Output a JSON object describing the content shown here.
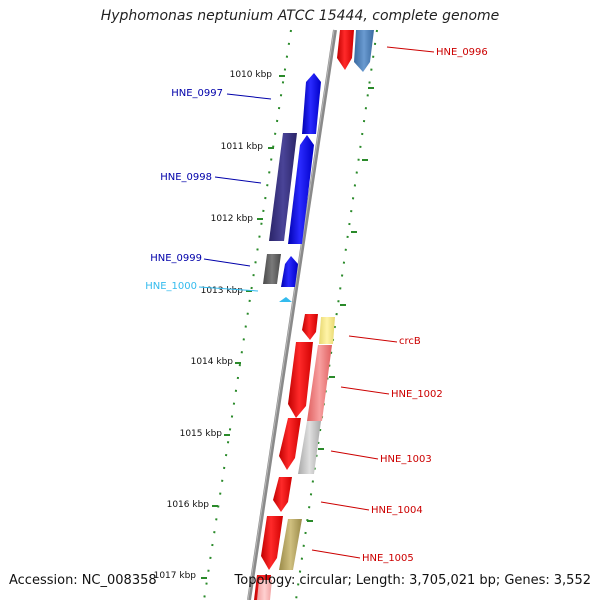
{
  "title": "Hyphomonas neptunium ATCC 15444, complete genome",
  "footer": {
    "accession_label": "Accession:",
    "accession": "NC_008358",
    "topology_label": "Topology:",
    "topology": "circular;",
    "length_label": "Length:",
    "length": "3,705,021 bp;",
    "genes_label": "Genes:",
    "genes": "3,552"
  },
  "scale_ticks": [
    {
      "label": "1010 kbp"
    },
    {
      "label": "1011 kbp"
    },
    {
      "label": "1012 kbp"
    },
    {
      "label": "1013 kbp"
    },
    {
      "label": "1014 kbp"
    },
    {
      "label": "1015 kbp"
    },
    {
      "label": "1016 kbp"
    },
    {
      "label": "1017 kbp"
    }
  ],
  "gene_labels": [
    {
      "name": "HNE_0996",
      "color": "#cc0000"
    },
    {
      "name": "HNE_0997",
      "color": "#0000aa"
    },
    {
      "name": "HNE_0998",
      "color": "#0000aa"
    },
    {
      "name": "HNE_0999",
      "color": "#0000aa"
    },
    {
      "name": "HNE_1000",
      "color": "#33bbee"
    },
    {
      "name": "crcB",
      "color": "#cc0000"
    },
    {
      "name": "HNE_1002",
      "color": "#cc0000"
    },
    {
      "name": "HNE_1003",
      "color": "#cc0000"
    },
    {
      "name": "HNE_1004",
      "color": "#cc0000"
    },
    {
      "name": "HNE_1005",
      "color": "#cc0000"
    }
  ],
  "colors": {
    "backbone": "#8a8a8a",
    "tick_green": "#2a8a2a",
    "forward_cds": "#ee0000",
    "reverse_cds": "#0000ee",
    "trna": "#33bbee"
  }
}
